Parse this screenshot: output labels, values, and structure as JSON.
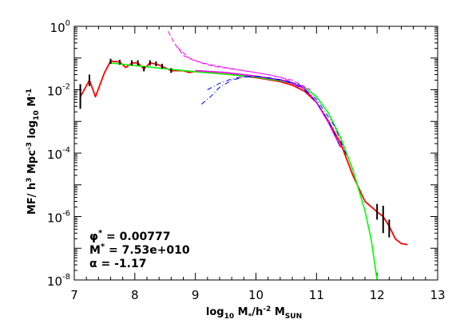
{
  "chart_data": {
    "type": "line",
    "xlim": [
      7,
      13
    ],
    "ylim": [
      1e-08,
      1
    ],
    "yscale": "log",
    "grid": false,
    "x_ticks": [
      "7",
      "8",
      "9",
      "10",
      "11",
      "12",
      "13"
    ],
    "y_ticks": [
      {
        "base": "10",
        "exp": "0",
        "value": 1
      },
      {
        "base": "10",
        "exp": "-2",
        "value": 0.01
      },
      {
        "base": "10",
        "exp": "-4",
        "value": 0.0001
      },
      {
        "base": "10",
        "exp": "-6",
        "value": 1e-06
      },
      {
        "base": "10",
        "exp": "-8",
        "value": 1e-08
      }
    ],
    "xlabel": {
      "pre": "log",
      "sub1": "10",
      "mid": " M",
      "sub2": "*",
      "post": "/h",
      "sup": "-2",
      "tail": " M",
      "sub3": "SUN"
    },
    "ylabel": {
      "a": "MF/ h",
      "a_sup": "3",
      "b": " Mpc",
      "b_sup": "-3",
      "c": " log",
      "c_sub": "10",
      "d": " M",
      "d_sup": "-1"
    },
    "annotations": {
      "phi": {
        "sym": "φ",
        "sup": "*",
        "text": " = 0.00777"
      },
      "mstar": {
        "sym": "M",
        "sup": "*",
        "text": " = 7.53e+010"
      },
      "alpha": {
        "sym": "α",
        "text": " = -1.17"
      }
    },
    "series": [
      {
        "color": "#ff0000",
        "style": "solid",
        "width": 1.8,
        "x": [
          7.1,
          7.25,
          7.35,
          7.5,
          7.6,
          7.75,
          7.85,
          7.95,
          8.05,
          8.15,
          8.25,
          8.35,
          8.45,
          8.6,
          8.7,
          8.8,
          8.9,
          9.0,
          9.2,
          9.4,
          9.6,
          9.8,
          10.0,
          10.2,
          10.4,
          10.6,
          10.8,
          11.0,
          11.2,
          11.4,
          11.6,
          11.8,
          12.0,
          12.1,
          12.2,
          12.3,
          12.4,
          12.5
        ],
        "y": [
          0.006,
          0.02,
          0.006,
          0.035,
          0.08,
          0.075,
          0.05,
          0.07,
          0.07,
          0.045,
          0.07,
          0.065,
          0.055,
          0.04,
          0.04,
          0.04,
          0.035,
          0.038,
          0.035,
          0.032,
          0.03,
          0.027,
          0.024,
          0.021,
          0.018,
          0.014,
          0.009,
          0.004,
          0.001,
          0.0002,
          2e-05,
          3e-06,
          1.4e-06,
          1e-06,
          5e-07,
          2e-07,
          1.4e-07,
          1.3e-07
        ]
      },
      {
        "color": "#00ff00",
        "style": "solid",
        "width": 1.6,
        "x": [
          7.6,
          8.0,
          8.5,
          9.0,
          9.5,
          10.0,
          10.5,
          10.8,
          11.0,
          11.2,
          11.4,
          11.6,
          11.8,
          11.9,
          12.0,
          12.1
        ],
        "y": [
          0.07,
          0.058,
          0.046,
          0.037,
          0.031,
          0.025,
          0.018,
          0.012,
          0.006,
          0.0018,
          0.0003,
          3e-05,
          1.5e-06,
          2e-07,
          1e-08,
          1e-09
        ]
      },
      {
        "color": "#ff00ff",
        "style": "solid",
        "width": 1.6,
        "x": [
          9.0,
          9.5,
          10.0,
          10.5,
          10.8,
          11.0,
          11.2,
          11.4
        ],
        "y": [
          0.04,
          0.035,
          0.027,
          0.019,
          0.011,
          0.004,
          0.0009,
          0.00015
        ]
      },
      {
        "color": "#ff00ff",
        "style": "dash",
        "width": 1,
        "x": [
          8.55,
          8.65,
          8.8,
          9.0,
          9.2,
          9.5,
          9.8,
          10.2,
          10.6,
          10.9
        ],
        "y": [
          0.7,
          0.3,
          0.12,
          0.08,
          0.065,
          0.05,
          0.04,
          0.03,
          0.02,
          0.01
        ]
      },
      {
        "color": "#ff00ff",
        "style": "dash",
        "width": 1,
        "x": [
          8.7,
          8.9,
          9.1,
          9.3,
          9.6,
          10.0,
          10.4,
          10.8
        ],
        "y": [
          0.22,
          0.1,
          0.07,
          0.055,
          0.045,
          0.035,
          0.025,
          0.012
        ]
      },
      {
        "color": "#0000ff",
        "style": "dashdot",
        "width": 1,
        "x": [
          9.1,
          9.25,
          9.4,
          9.6,
          9.8,
          10.0,
          10.3,
          10.6,
          10.8,
          11.0,
          11.2,
          11.4
        ],
        "y": [
          0.0035,
          0.006,
          0.012,
          0.02,
          0.025,
          0.026,
          0.022,
          0.016,
          0.01,
          0.004,
          0.001,
          0.00015
        ]
      },
      {
        "color": "#0000ff",
        "style": "dashdot",
        "width": 1,
        "x": [
          9.2,
          9.4,
          9.6,
          9.8,
          10.1,
          10.4,
          10.7,
          11.0,
          11.3,
          11.5
        ],
        "y": [
          0.01,
          0.016,
          0.022,
          0.026,
          0.026,
          0.021,
          0.015,
          0.005,
          0.0007,
          8e-05
        ]
      }
    ],
    "error_bars": [
      {
        "x": 7.1,
        "lo": 0.0025,
        "hi": 0.015
      },
      {
        "x": 7.25,
        "lo": 0.013,
        "hi": 0.03
      },
      {
        "x": 7.6,
        "lo": 0.065,
        "hi": 0.095
      },
      {
        "x": 7.75,
        "lo": 0.062,
        "hi": 0.088
      },
      {
        "x": 7.95,
        "lo": 0.058,
        "hi": 0.085
      },
      {
        "x": 8.05,
        "lo": 0.058,
        "hi": 0.085
      },
      {
        "x": 8.15,
        "lo": 0.038,
        "hi": 0.055
      },
      {
        "x": 8.25,
        "lo": 0.058,
        "hi": 0.085
      },
      {
        "x": 8.35,
        "lo": 0.055,
        "hi": 0.078
      },
      {
        "x": 8.45,
        "lo": 0.046,
        "hi": 0.066
      },
      {
        "x": 8.6,
        "lo": 0.034,
        "hi": 0.048
      },
      {
        "x": 12.0,
        "lo": 8e-07,
        "hi": 2.5e-06
      },
      {
        "x": 12.1,
        "lo": 3e-07,
        "hi": 2.2e-06
      },
      {
        "x": 12.2,
        "lo": 2.2e-07,
        "hi": 8e-07
      }
    ]
  }
}
